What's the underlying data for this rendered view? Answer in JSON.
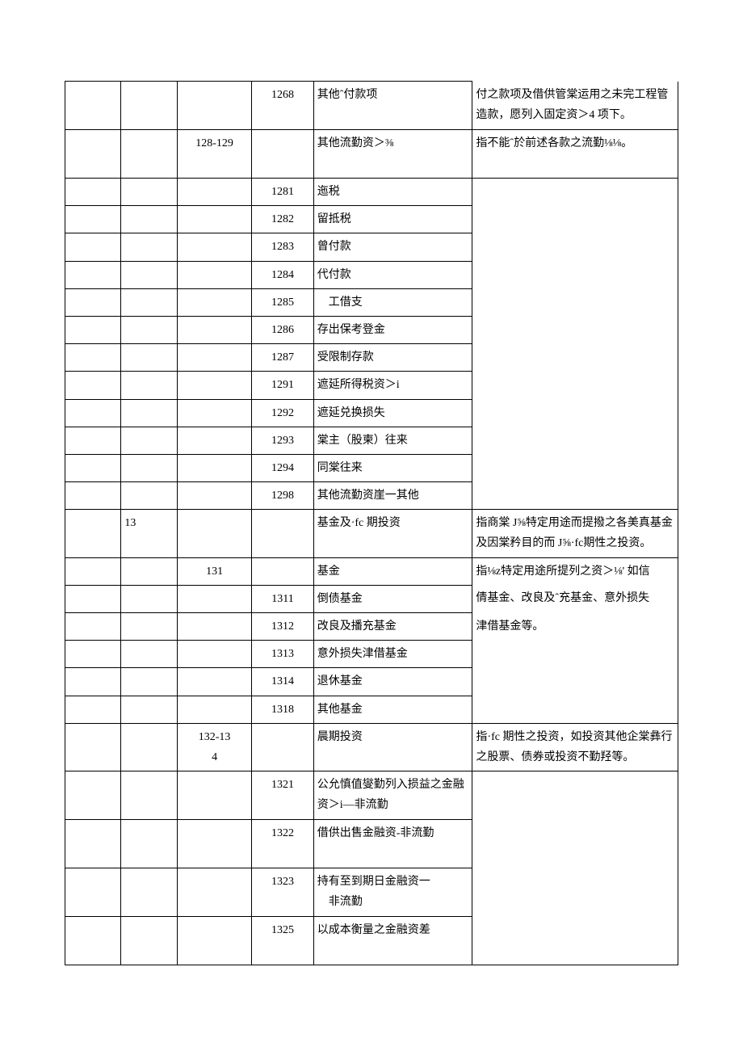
{
  "rows": [
    {
      "c1": "",
      "c2": "",
      "c3": "",
      "c4": "1268",
      "c5": "其他ˆ付款项",
      "c6": "",
      "c6_cont": true
    },
    {
      "c1": "",
      "c2": "",
      "c3": "",
      "c4": "",
      "c5": "",
      "c6": "付之款项及借供管棠运用之未完工程管造款，愿列入固定资＞4 项下。",
      "merge_prev": true
    },
    {
      "c1": "",
      "c2": "",
      "c3": "128-129",
      "c4": "",
      "c5": "其他流勤资＞⅜",
      "c6": "指不能ˆ於前述各款之流勤⅛⅛。",
      "tall": true
    },
    {
      "c1": "",
      "c2": "",
      "c3": "",
      "c4": "1281",
      "c5": "迤税",
      "c6": "",
      "c6_open": true
    },
    {
      "c1": "",
      "c2": "",
      "c3": "",
      "c4": "1282",
      "c5": "留抵税",
      "c6": "",
      "c6_open": true
    },
    {
      "c1": "",
      "c2": "",
      "c3": "",
      "c4": "1283",
      "c5": "曾付款",
      "c6": "",
      "c6_open": true
    },
    {
      "c1": "",
      "c2": "",
      "c3": "",
      "c4": "1284",
      "c5": "代付款",
      "c6": "",
      "c6_open": true
    },
    {
      "c1": "",
      "c2": "",
      "c3": "",
      "c4": "1285",
      "c5": "　工借支",
      "c6": "",
      "c6_open": true
    },
    {
      "c1": "",
      "c2": "",
      "c3": "",
      "c4": "1286",
      "c5": "存出保考登金",
      "c6": "",
      "c6_open": true
    },
    {
      "c1": "",
      "c2": "",
      "c3": "",
      "c4": "1287",
      "c5": "受限制存款",
      "c6": "",
      "c6_open": true
    },
    {
      "c1": "",
      "c2": "",
      "c3": "",
      "c4": "1291",
      "c5": "遮延所得税资＞i",
      "c6": "",
      "c6_open": true
    },
    {
      "c1": "",
      "c2": "",
      "c3": "",
      "c4": "1292",
      "c5": "遮延兑换损失",
      "c6": "",
      "c6_open": true
    },
    {
      "c1": "",
      "c2": "",
      "c3": "",
      "c4": "1293",
      "c5": "棠主（股柬）往来",
      "c6": "",
      "c6_open": true
    },
    {
      "c1": "",
      "c2": "",
      "c3": "",
      "c4": "1294",
      "c5": "同棠往来",
      "c6": "",
      "c6_open": true
    },
    {
      "c1": "",
      "c2": "",
      "c3": "",
      "c4": "1298",
      "c5": "其他流勤资崖一其他",
      "c6": "",
      "c6_last": true
    },
    {
      "c1": "",
      "c2": "13",
      "c3": "",
      "c4": "",
      "c5": "基金及·fc 期投资",
      "c6": "指商棠 J⅝特定用途而提撥之各美真基金及因棠矜目的而 J⅝·fc期性之投资。"
    },
    {
      "c1": "",
      "c2": "",
      "c3": "131",
      "c4": "",
      "c5": "基金",
      "c6": "指⅛z特定用途所提列之资＞⅛' 如信",
      "c6_open_start": true
    },
    {
      "c1": "",
      "c2": "",
      "c3": "",
      "c4": "1311",
      "c5": "倒债基金",
      "c6": "倩基金、改良及ˆ充基金、意外损失",
      "c6_open_mid": true
    },
    {
      "c1": "",
      "c2": "",
      "c3": "",
      "c4": "1312",
      "c5": "改良及播充基金",
      "c6": "津借基金等。",
      "c6_open_mid": true
    },
    {
      "c1": "",
      "c2": "",
      "c3": "",
      "c4": "1313",
      "c5": "意外损失津借基金",
      "c6": "",
      "c6_open": true
    },
    {
      "c1": "",
      "c2": "",
      "c3": "",
      "c4": "1314",
      "c5": "退休基金",
      "c6": "",
      "c6_open": true
    },
    {
      "c1": "",
      "c2": "",
      "c3": "",
      "c4": "1318",
      "c5": "其他基金",
      "c6": "",
      "c6_last": true
    },
    {
      "c1": "",
      "c2": "",
      "c3": "132-134",
      "c4": "",
      "c5": "晨期投资",
      "c6": "指·fc 期性之投资，如投资其他企棠彝行之股票、债券或投资不勤羟等。",
      "c3_wrap": true
    },
    {
      "c1": "",
      "c2": "",
      "c3": "",
      "c4": "1321",
      "c5": "公允慎值燮勤列入损益之金融资＞i—非流勤",
      "c6": "",
      "tall": true,
      "c6_open": true
    },
    {
      "c1": "",
      "c2": "",
      "c3": "",
      "c4": "1322",
      "c5": "借供出售金融资-非流勤",
      "c6": "",
      "tall": true,
      "c6_open": true
    },
    {
      "c1": "",
      "c2": "",
      "c3": "",
      "c4": "1323",
      "c5": "持有至到期日金融资一",
      "c6": "",
      "c6_open": true
    },
    {
      "c1": "",
      "c2": "",
      "c3": "",
      "c4": "",
      "c5": "　非流勤",
      "c6": "",
      "c5_cont": true,
      "c6_open": true
    },
    {
      "c1": "",
      "c2": "",
      "c3": "",
      "c4": "1325",
      "c5": "以成本衡量之金融资差",
      "c6": "",
      "tall": true,
      "c6_last": true
    }
  ],
  "colors": {
    "border": "#000000",
    "bg": "#ffffff",
    "text": "#000000"
  }
}
